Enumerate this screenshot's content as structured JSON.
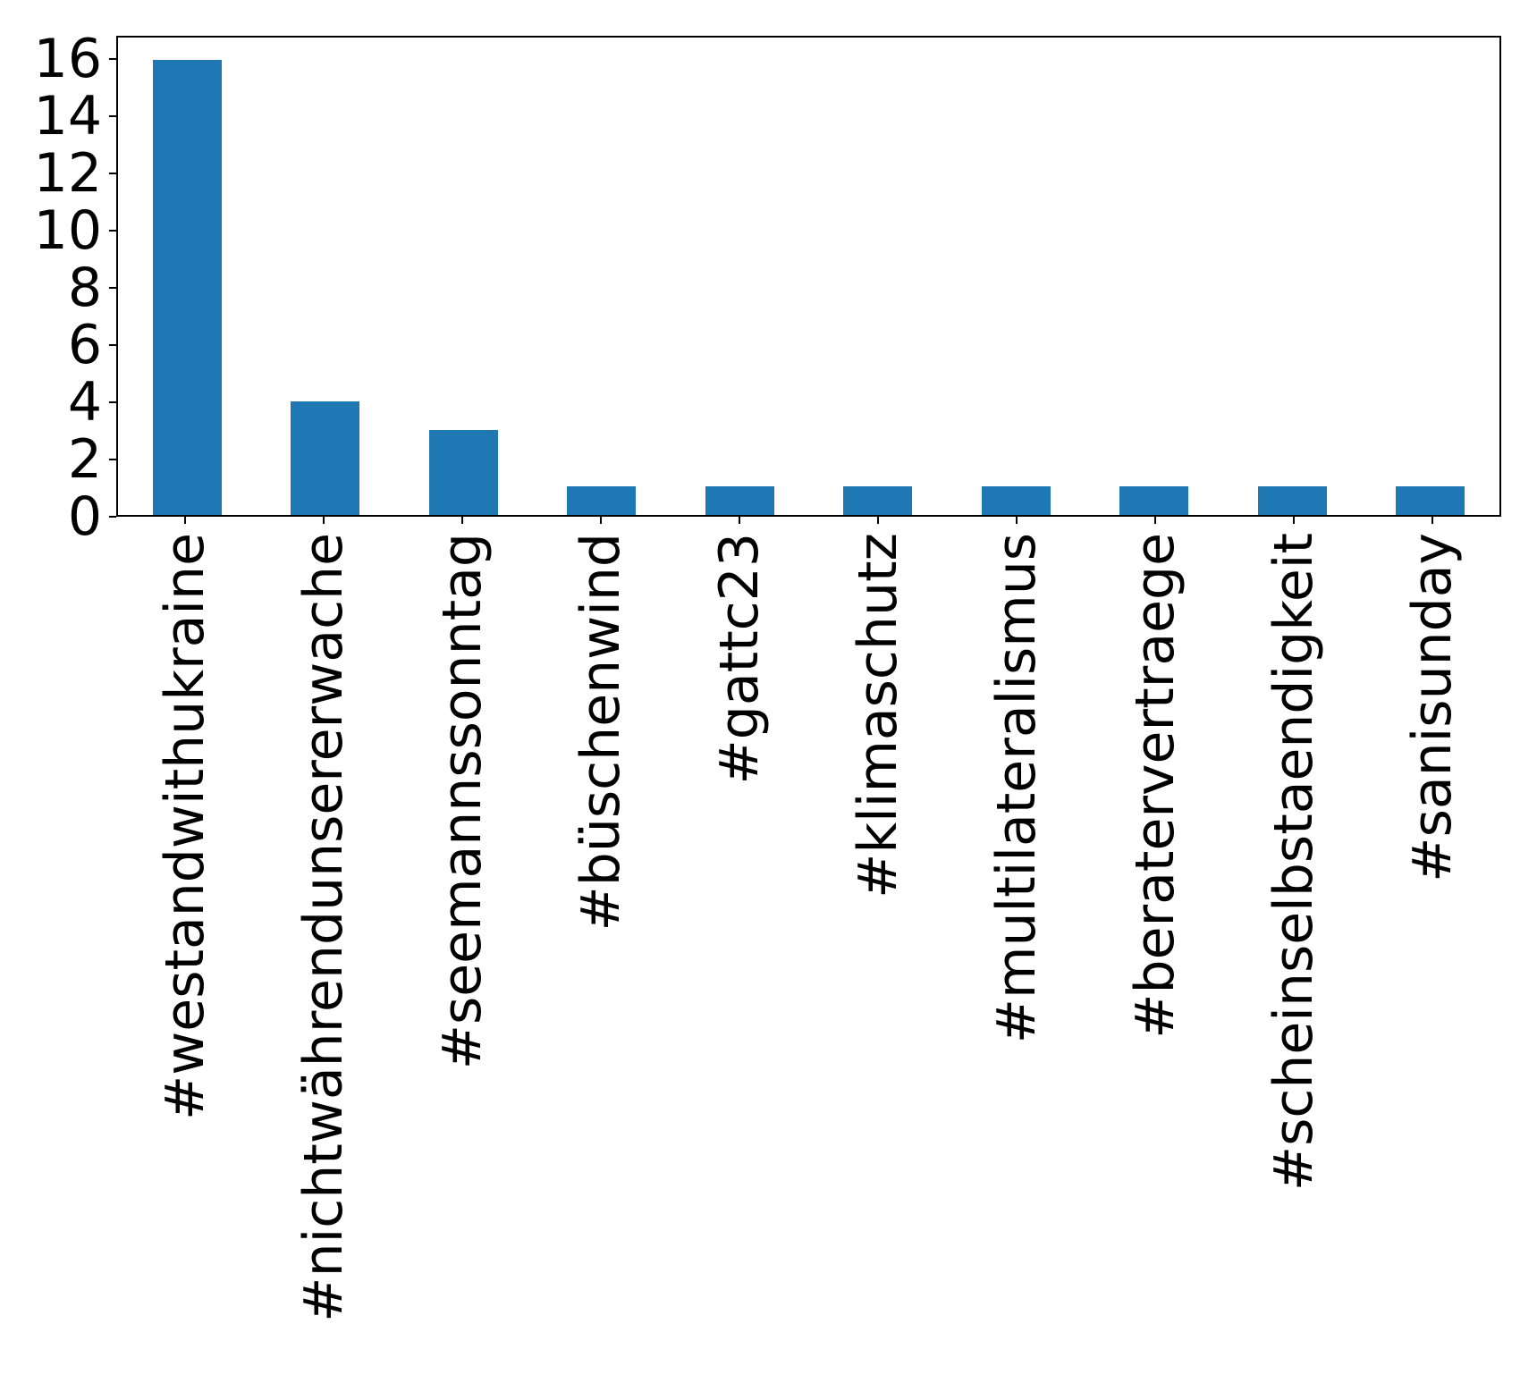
{
  "chart_data": {
    "type": "bar",
    "categories": [
      "#westandwithukraine",
      "#nichtwährendunsererwache",
      "#seemannssonntag",
      "#büschenwind",
      "#gattc23",
      "#klimaschutz",
      "#multilateralismus",
      "#beratervertraege",
      "#scheinselbstaendigkeit",
      "#sanisunday"
    ],
    "values": [
      16,
      4,
      3,
      1,
      1,
      1,
      1,
      1,
      1,
      1
    ],
    "title": "",
    "xlabel": "",
    "ylabel": "",
    "yticks": [
      0,
      2,
      4,
      6,
      8,
      10,
      12,
      14,
      16
    ],
    "ylim": [
      0,
      16.8
    ],
    "bar_color": "#1f77b4",
    "axis_color": "#000000",
    "bar_width_fraction": 0.5,
    "grid": false,
    "legend": null,
    "x_tick_rotation_deg": 90
  }
}
